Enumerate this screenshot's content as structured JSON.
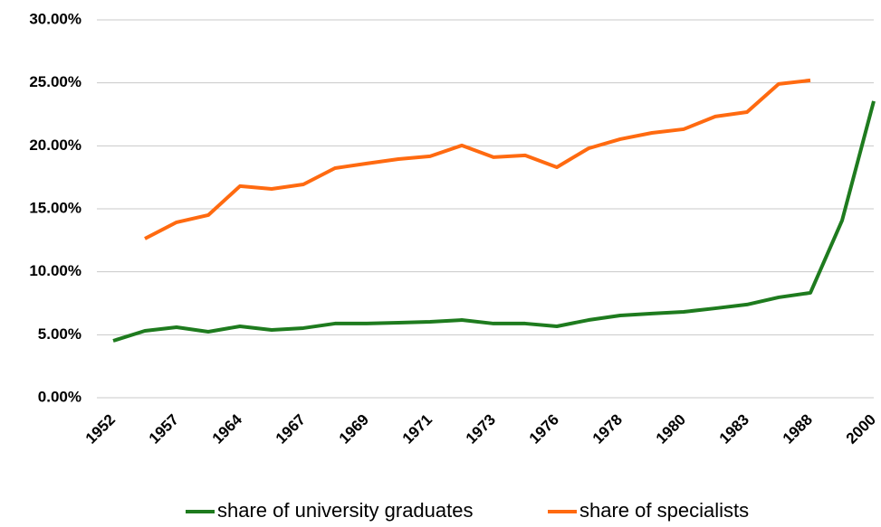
{
  "chart_data": {
    "type": "line",
    "categories": [
      "1952",
      null,
      "1957",
      null,
      "1964",
      null,
      "1967",
      null,
      "1969",
      null,
      "1971",
      null,
      "1973",
      null,
      "1976",
      null,
      "1978",
      null,
      "1980",
      null,
      "1983",
      null,
      "1988",
      null,
      "2000"
    ],
    "series": [
      {
        "name": "share of university graduates",
        "color": "#1e7b1e",
        "values": [
          4.52,
          5.31,
          5.6,
          5.24,
          5.67,
          5.38,
          5.53,
          5.89,
          5.89,
          5.96,
          6.03,
          6.17,
          5.89,
          5.89,
          5.67,
          6.17,
          6.53,
          6.68,
          6.82,
          7.1,
          7.4,
          7.97,
          8.33,
          14.07,
          23.55
        ]
      },
      {
        "name": "share of specialists",
        "color": "#ff6a10",
        "values": [
          null,
          12.63,
          13.93,
          14.5,
          16.8,
          16.58,
          16.94,
          18.23,
          18.6,
          18.95,
          19.17,
          20.03,
          19.1,
          19.24,
          18.3,
          19.8,
          20.53,
          21.03,
          21.32,
          22.33,
          22.68,
          24.91,
          25.2,
          null,
          null
        ]
      }
    ],
    "ylim": [
      0,
      30
    ],
    "yticks": [
      {
        "value": 0,
        "label": "0.00%"
      },
      {
        "value": 5,
        "label": "5.00%"
      },
      {
        "value": 10,
        "label": "10.00%"
      },
      {
        "value": 15,
        "label": "15.00%"
      },
      {
        "value": 20,
        "label": "20.00%"
      },
      {
        "value": 25,
        "label": "25.00%"
      },
      {
        "value": 30,
        "label": "30.00%"
      }
    ],
    "grid": true,
    "legend": "bottom"
  }
}
